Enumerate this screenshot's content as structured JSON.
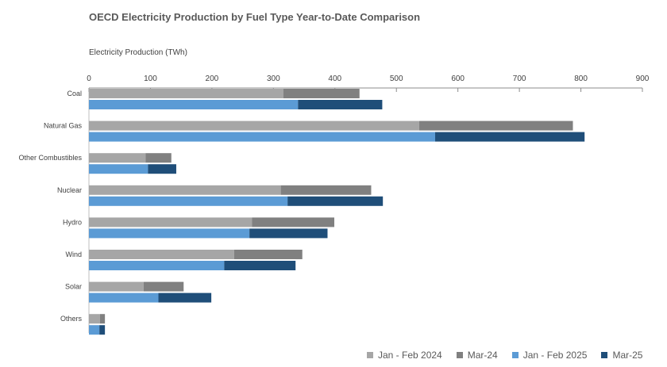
{
  "chart_data": {
    "type": "bar",
    "orientation": "horizontal",
    "stacked_pairs": true,
    "title": "OECD Electricity Production by Fuel Type Year-to-Date Comparison",
    "xlabel": "Electricity Production (TWh)",
    "ylabel": "",
    "xlim": [
      0,
      900
    ],
    "xticks": [
      0,
      100,
      200,
      300,
      400,
      500,
      600,
      700,
      800,
      900
    ],
    "grid": false,
    "legend_position": "bottom-right",
    "categories": [
      "Coal",
      "Natural Gas",
      "Other Combustibles",
      "Nuclear",
      "Hydro",
      "Wind",
      "Solar",
      "Others"
    ],
    "series": [
      {
        "name": "Jan - Feb 2024",
        "color": "#a6a6a6",
        "values": [
          316,
          537,
          92,
          312,
          265,
          236,
          89,
          18
        ]
      },
      {
        "name": "Mar-24",
        "color": "#808080",
        "values": [
          124,
          250,
          42,
          147,
          134,
          111,
          65,
          8
        ]
      },
      {
        "name": "Jan - Feb 2025",
        "color": "#5b9bd5",
        "values": [
          340,
          563,
          96,
          323,
          261,
          220,
          113,
          17
        ]
      },
      {
        "name": "Mar-25",
        "color": "#1f4e79",
        "values": [
          137,
          243,
          46,
          155,
          127,
          116,
          86,
          9
        ]
      }
    ]
  }
}
